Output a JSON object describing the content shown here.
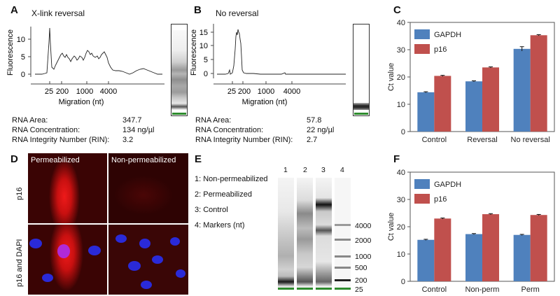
{
  "panel_a": {
    "letter": "A",
    "title": "X-link reversal",
    "ylabel": "Fluorescence",
    "xlabel": "Migration (nt)",
    "yticks": [
      "10",
      "5",
      "0"
    ],
    "xticks": [
      "25",
      "200",
      "1000",
      "4000"
    ],
    "stats": [
      {
        "label": "RNA Area:",
        "value": "347.7"
      },
      {
        "label": "RNA Concentration:",
        "value": "134 ng/µl"
      },
      {
        "label": "RNA Integrity Number (RIN):",
        "value": "3.2"
      }
    ]
  },
  "panel_b": {
    "letter": "B",
    "title": "No reversal",
    "ylabel": "Fluorescence",
    "xlabel": "Migration (nt)",
    "yticks": [
      "15",
      "10",
      "5",
      "0"
    ],
    "xticks": [
      "25",
      "200",
      "1000",
      "4000"
    ],
    "stats": [
      {
        "label": "RNA Area:",
        "value": "57.8"
      },
      {
        "label": "RNA Concentration:",
        "value": "22 ng/µl"
      },
      {
        "label": "RNA Integrity Number (RIN):",
        "value": "2.7"
      }
    ]
  },
  "panel_d": {
    "letter": "D",
    "col_labels": [
      "Permeabilized",
      "Non-permeabilized"
    ],
    "row_labels": [
      "p16",
      "p16 and DAPI"
    ]
  },
  "panel_e": {
    "letter": "E",
    "lane_numbers": [
      "1",
      "2",
      "3",
      "4"
    ],
    "key": [
      "1: Non-permeabilized",
      "2: Permeabilized",
      "3: Control",
      "4: Markers (nt)"
    ],
    "marker_labels": [
      "4000",
      "2000",
      "1000",
      "500",
      "200",
      "25"
    ]
  },
  "chart_data": [
    {
      "panel": "C",
      "type": "bar",
      "ylabel": "Ct value",
      "ylim": [
        0,
        40
      ],
      "yticks": [
        "0",
        "10",
        "20",
        "30",
        "40"
      ],
      "categories": [
        "Control",
        "Reversal",
        "No reversal"
      ],
      "series": [
        {
          "name": "GAPDH",
          "color": "#4f81bd",
          "values": [
            14.4,
            18.4,
            30.3
          ],
          "errors": [
            0.2,
            0.2,
            0.8
          ]
        },
        {
          "name": "p16",
          "color": "#c0504d",
          "values": [
            20.4,
            23.5,
            35.3
          ],
          "errors": [
            0.2,
            0.2,
            0.2
          ]
        }
      ],
      "legend": "top-left"
    },
    {
      "panel": "F",
      "type": "bar",
      "ylabel": "Ct value",
      "ylim": [
        0,
        40
      ],
      "yticks": [
        "0",
        "10",
        "20",
        "30",
        "40"
      ],
      "categories": [
        "Control",
        "Non-perm",
        "Perm"
      ],
      "series": [
        {
          "name": "GAPDH",
          "color": "#4f81bd",
          "values": [
            15.2,
            17.3,
            17.0
          ],
          "errors": [
            0.2,
            0.2,
            0.2
          ]
        },
        {
          "name": "p16",
          "color": "#c0504d",
          "values": [
            23.0,
            24.6,
            24.3
          ],
          "errors": [
            0.2,
            0.2,
            0.2
          ]
        }
      ],
      "legend": "top-left"
    }
  ]
}
